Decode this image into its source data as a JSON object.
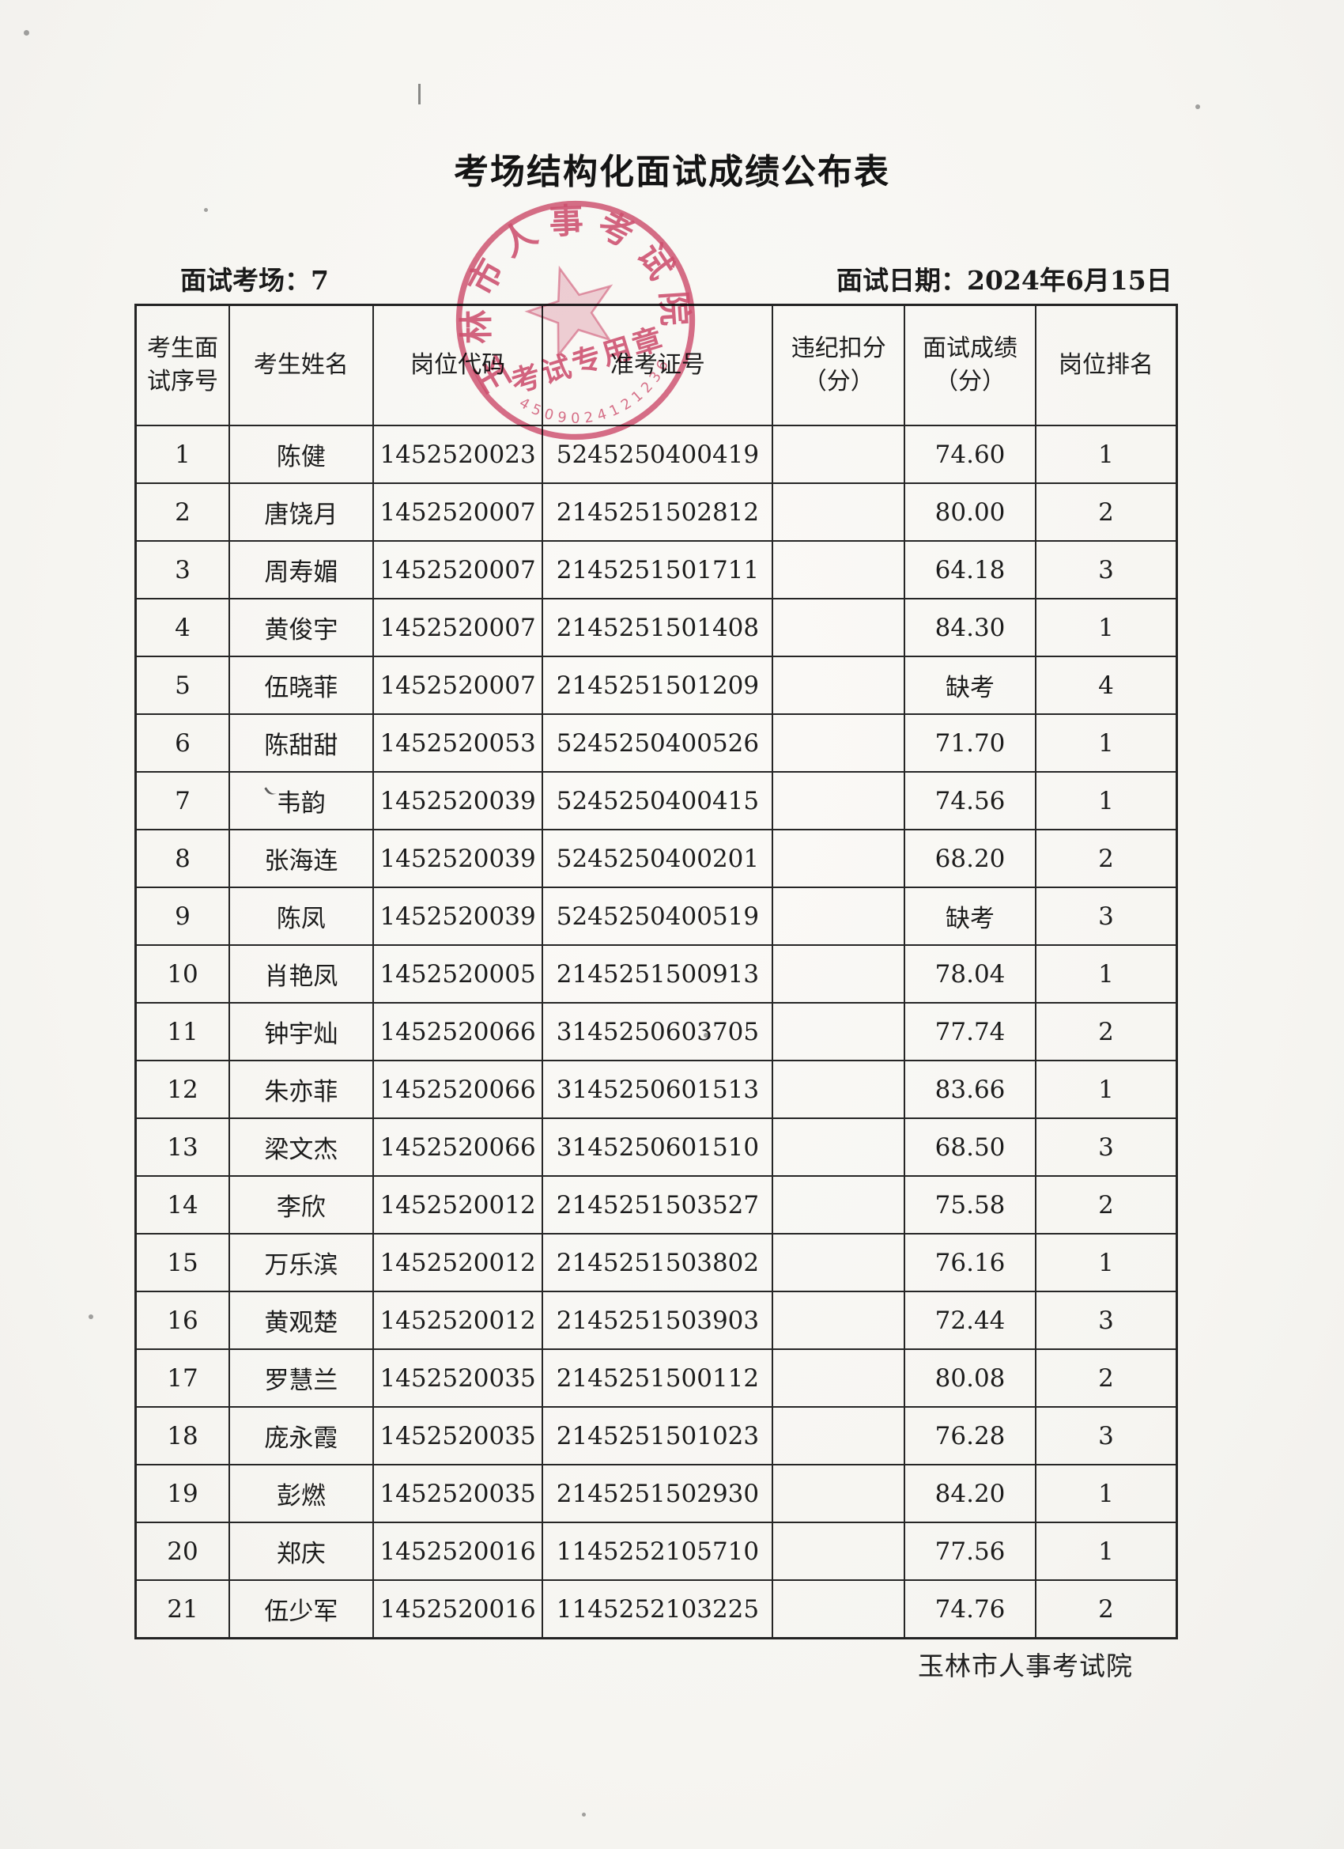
{
  "page": {
    "title": "考场结构化面试成绩公布表",
    "meta": {
      "venue_label": "面试考场：",
      "venue_value": "7",
      "date_label": "面试日期：",
      "date_value": "2024年6月15日"
    },
    "footer": "玉林市人事考试院"
  },
  "stamp": {
    "org": "玉林市人事考试院",
    "center_text": "考试专用章",
    "serial": "4509024121236",
    "color": "#cd3c62"
  },
  "table": {
    "headers": [
      "考生面\n试序号",
      "考生姓名",
      "岗位代码",
      "准考证号",
      "违纪扣分\n（分）",
      "面试成绩\n（分）",
      "岗位排名"
    ],
    "rows": [
      [
        "1",
        "陈健",
        "1452520023",
        "5245250400419",
        "",
        "74.60",
        "1"
      ],
      [
        "2",
        "唐饶月",
        "1452520007",
        "2145251502812",
        "",
        "80.00",
        "2"
      ],
      [
        "3",
        "周寿媚",
        "1452520007",
        "2145251501711",
        "",
        "64.18",
        "3"
      ],
      [
        "4",
        "黄俊宇",
        "1452520007",
        "2145251501408",
        "",
        "84.30",
        "1"
      ],
      [
        "5",
        "伍晓菲",
        "1452520007",
        "2145251501209",
        "",
        "缺考",
        "4"
      ],
      [
        "6",
        "陈甜甜",
        "1452520053",
        "5245250400526",
        "",
        "71.70",
        "1"
      ],
      [
        "7",
        "韦韵",
        "1452520039",
        "5245250400415",
        "",
        "74.56",
        "1"
      ],
      [
        "8",
        "张海连",
        "1452520039",
        "5245250400201",
        "",
        "68.20",
        "2"
      ],
      [
        "9",
        "陈凤",
        "1452520039",
        "5245250400519",
        "",
        "缺考",
        "3"
      ],
      [
        "10",
        "肖艳凤",
        "1452520005",
        "2145251500913",
        "",
        "78.04",
        "1"
      ],
      [
        "11",
        "钟宇灿",
        "1452520066",
        "3145250603705",
        "",
        "77.74",
        "2"
      ],
      [
        "12",
        "朱亦菲",
        "1452520066",
        "3145250601513",
        "",
        "83.66",
        "1"
      ],
      [
        "13",
        "梁文杰",
        "1452520066",
        "3145250601510",
        "",
        "68.50",
        "3"
      ],
      [
        "14",
        "李欣",
        "1452520012",
        "2145251503527",
        "",
        "75.58",
        "2"
      ],
      [
        "15",
        "万乐滨",
        "1452520012",
        "2145251503802",
        "",
        "76.16",
        "1"
      ],
      [
        "16",
        "黄观楚",
        "1452520012",
        "2145251503903",
        "",
        "72.44",
        "3"
      ],
      [
        "17",
        "罗慧兰",
        "1452520035",
        "2145251500112",
        "",
        "80.08",
        "2"
      ],
      [
        "18",
        "庞永霞",
        "1452520035",
        "2145251501023",
        "",
        "76.28",
        "3"
      ],
      [
        "19",
        "彭燃",
        "1452520035",
        "2145251502930",
        "",
        "84.20",
        "1"
      ],
      [
        "20",
        "郑庆",
        "1452520016",
        "1145252105710",
        "",
        "77.56",
        "1"
      ],
      [
        "21",
        "伍少军",
        "1452520016",
        "1145252103225",
        "",
        "74.76",
        "2"
      ]
    ]
  }
}
